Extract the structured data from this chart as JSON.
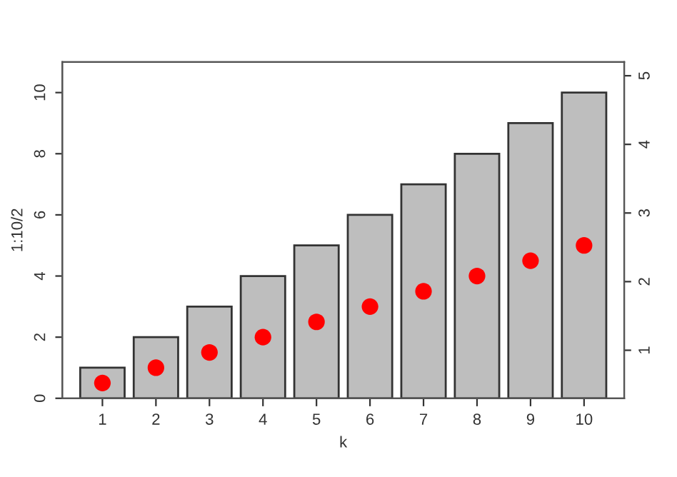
{
  "chart_data": {
    "type": "bar",
    "xlabel": "k",
    "ylabel": "1:10/2",
    "categories": [
      "1",
      "2",
      "3",
      "4",
      "5",
      "6",
      "7",
      "8",
      "9",
      "10"
    ],
    "series": [
      {
        "color": "#bebebe",
        "values": [
          1,
          2,
          3,
          4,
          5,
          6,
          7,
          8,
          9,
          10
        ]
      },
      {
        "type": "scatter",
        "color": "#ff0000",
        "marker": "circle",
        "values": [
          0.5,
          1,
          1.5,
          2,
          2.5,
          3,
          3.5,
          4,
          4.5,
          5
        ]
      }
    ],
    "ylim": [
      0,
      11
    ],
    "yticks": [
      0,
      2,
      4,
      6,
      8,
      10
    ],
    "y2lim": [
      0.3,
      5.2
    ],
    "y2ticks": [
      1,
      2,
      3,
      4,
      5
    ],
    "grid": false,
    "legend": false
  }
}
